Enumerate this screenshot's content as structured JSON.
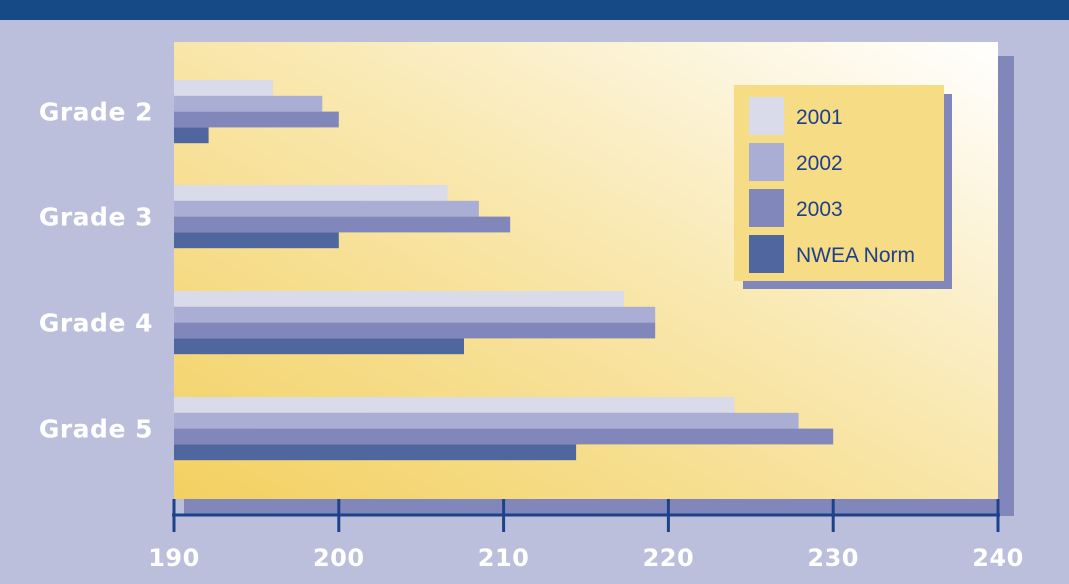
{
  "chart_data": {
    "type": "bar",
    "orientation": "horizontal",
    "categories": [
      "Grade 2",
      "Grade 3",
      "Grade 4",
      "Grade 5"
    ],
    "series": [
      {
        "name": "2001",
        "color": "#d9daea",
        "values": [
          196,
          206.6,
          217.3,
          224
        ]
      },
      {
        "name": "2002",
        "color": "#aaaed4",
        "values": [
          199,
          208.5,
          219.2,
          227.9
        ]
      },
      {
        "name": "2003",
        "color": "#8187bb",
        "values": [
          200,
          210.4,
          219.2,
          230
        ]
      },
      {
        "name": "NWEA Norm",
        "color": "#50669f",
        "values": [
          192.1,
          200,
          207.6,
          214.4
        ]
      }
    ],
    "xlim": [
      190,
      240
    ],
    "xticks": [
      "190",
      "200",
      "210",
      "220",
      "230",
      "240"
    ],
    "legend_position": "top-right",
    "title": "",
    "xlabel": "",
    "ylabel": ""
  },
  "colors": {
    "header_band": "#154a86",
    "page_background": "#bcbfdc",
    "shadow": "#8187bb",
    "plot_gradient": [
      "#f3d265",
      "#ffffff"
    ],
    "legend_background": "#f6dc85",
    "axis": "#1d4289"
  }
}
